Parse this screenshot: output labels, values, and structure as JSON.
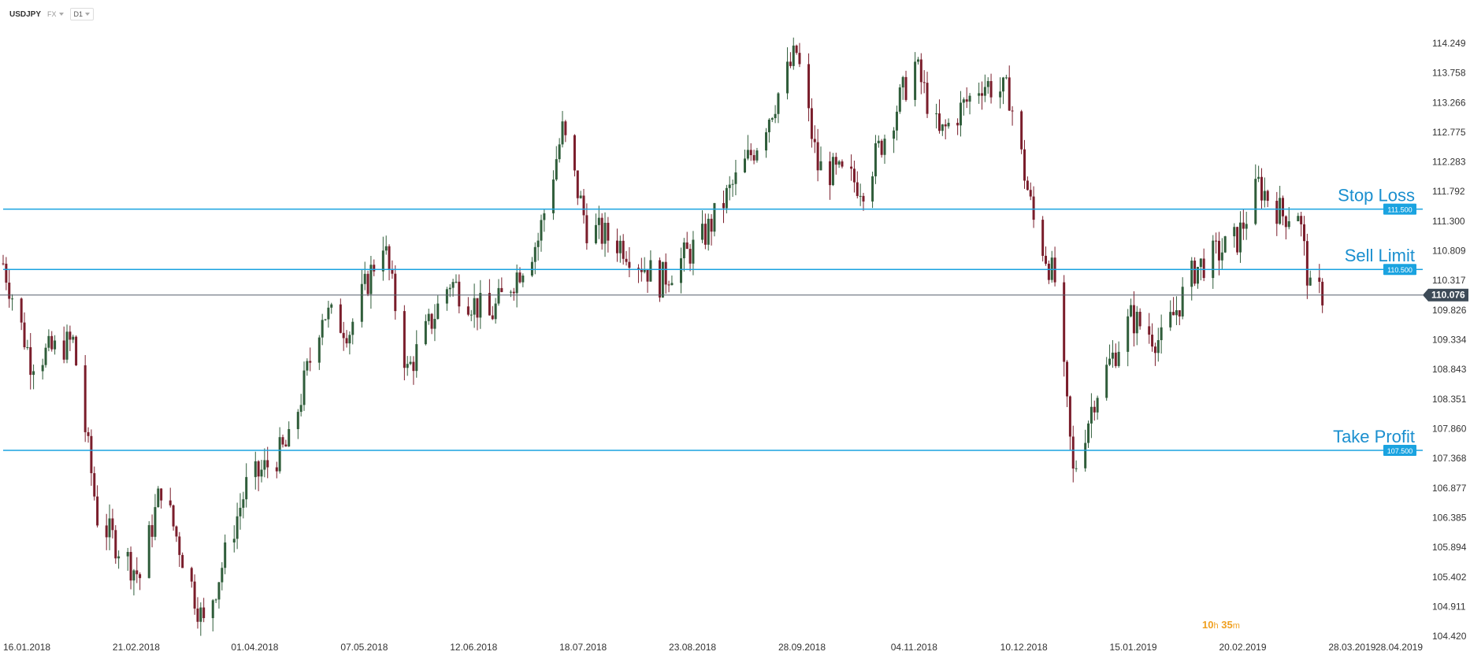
{
  "toolbar": {
    "symbol": "USDJPY",
    "market": "FX",
    "timeframe": "D1"
  },
  "countdown": {
    "hours": "10",
    "hours_unit": "h",
    "minutes": "35",
    "minutes_unit": "m"
  },
  "colors": {
    "bull": "#2f5d3a",
    "bear": "#7a1d2b",
    "level": "#1aa3e0",
    "level_text": "#1a8fcf",
    "current": "#555f6b"
  },
  "chart_data": {
    "type": "candlestick",
    "instrument": "USDJPY",
    "timeframe": "D1",
    "grid": false,
    "y_ticks": [
      "114.249",
      "113.758",
      "113.266",
      "112.775",
      "112.283",
      "111.792",
      "111.300",
      "110.809",
      "110.317",
      "109.826",
      "109.334",
      "108.843",
      "108.351",
      "107.860",
      "107.368",
      "106.877",
      "106.385",
      "105.894",
      "105.402",
      "104.911",
      "104.420"
    ],
    "ylim": [
      104.42,
      114.249
    ],
    "x_ticks": [
      "16.01.2018",
      "21.02.2018",
      "01.04.2018",
      "07.05.2018",
      "12.06.2018",
      "18.07.2018",
      "23.08.2018",
      "28.09.2018",
      "04.11.2018",
      "10.12.2018",
      "15.01.2019",
      "20.02.2019",
      "28.03.2019",
      "28.04.2019"
    ],
    "levels": [
      {
        "name": "Stop Loss",
        "price": 111.5,
        "label": "111.500"
      },
      {
        "name": "Sell Limit",
        "price": 110.5,
        "label": "110.500"
      },
      {
        "name": "Take Profit",
        "price": 107.5,
        "label": "107.500"
      }
    ],
    "current_price": {
      "value": 110.076,
      "label": "110.076"
    },
    "close_path": [
      {
        "date": "2018-01-16",
        "close": 110.6
      },
      {
        "date": "2018-01-25",
        "close": 109.0
      },
      {
        "date": "2018-02-08",
        "close": 109.3
      },
      {
        "date": "2018-02-16",
        "close": 106.4
      },
      {
        "date": "2018-03-02",
        "close": 105.4
      },
      {
        "date": "2018-03-09",
        "close": 106.9
      },
      {
        "date": "2018-03-23",
        "close": 104.6
      },
      {
        "date": "2018-04-06",
        "close": 106.9
      },
      {
        "date": "2018-04-20",
        "close": 107.6
      },
      {
        "date": "2018-05-01",
        "close": 109.8
      },
      {
        "date": "2018-05-10",
        "close": 109.5
      },
      {
        "date": "2018-05-21",
        "close": 111.0
      },
      {
        "date": "2018-05-29",
        "close": 108.8
      },
      {
        "date": "2018-06-12",
        "close": 110.3
      },
      {
        "date": "2018-06-25",
        "close": 109.7
      },
      {
        "date": "2018-07-11",
        "close": 111.0
      },
      {
        "date": "2018-07-19",
        "close": 112.8
      },
      {
        "date": "2018-07-27",
        "close": 111.2
      },
      {
        "date": "2018-08-08",
        "close": 110.9
      },
      {
        "date": "2018-08-20",
        "close": 110.3
      },
      {
        "date": "2018-09-03",
        "close": 111.0
      },
      {
        "date": "2018-09-20",
        "close": 112.5
      },
      {
        "date": "2018-10-04",
        "close": 114.1
      },
      {
        "date": "2018-10-11",
        "close": 112.2
      },
      {
        "date": "2018-10-26",
        "close": 111.9
      },
      {
        "date": "2018-11-12",
        "close": 113.9
      },
      {
        "date": "2018-11-20",
        "close": 112.7
      },
      {
        "date": "2018-12-04",
        "close": 113.6
      },
      {
        "date": "2018-12-13",
        "close": 113.4
      },
      {
        "date": "2018-12-21",
        "close": 111.3
      },
      {
        "date": "2018-12-28",
        "close": 110.3
      },
      {
        "date": "2019-01-03",
        "close": 107.1
      },
      {
        "date": "2019-01-10",
        "close": 108.4
      },
      {
        "date": "2019-01-22",
        "close": 109.7
      },
      {
        "date": "2019-02-01",
        "close": 109.3
      },
      {
        "date": "2019-02-12",
        "close": 110.5
      },
      {
        "date": "2019-02-26",
        "close": 111.0
      },
      {
        "date": "2019-03-05",
        "close": 111.9
      },
      {
        "date": "2019-03-13",
        "close": 111.4
      },
      {
        "date": "2019-03-18",
        "close": 111.5
      },
      {
        "date": "2019-03-22",
        "close": 110.1
      },
      {
        "date": "2019-03-26",
        "close": 110.1
      }
    ]
  }
}
